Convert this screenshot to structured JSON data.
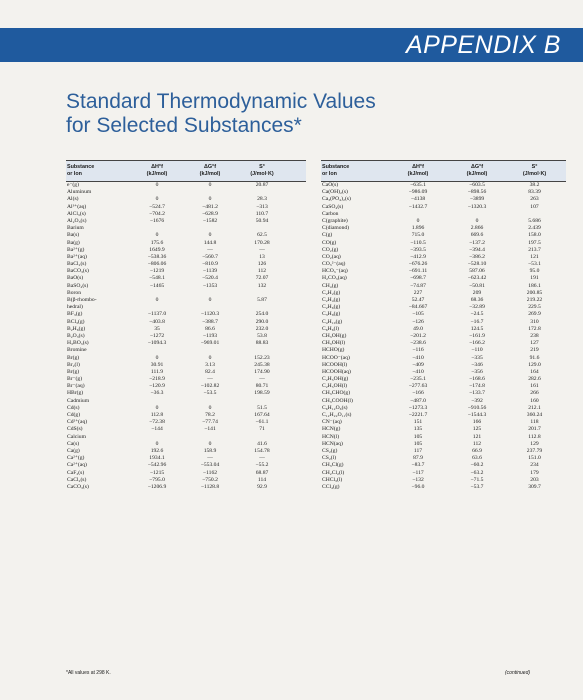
{
  "banner": {
    "label": "APPENDIX B"
  },
  "page_title": {
    "line1": "Standard Thermodynamic Values",
    "line2": "for Selected Substances*"
  },
  "headers": {
    "substance": "Substance",
    "substance2": "or Ion",
    "dh": "ΔH°f",
    "dh_unit": "(kJ/mol)",
    "dg": "ΔG°f",
    "dg_unit": "(kJ/mol)",
    "s": "S°",
    "s_unit": "(J/mol·K)"
  },
  "left_rows": [
    [
      "e⁻(g)",
      "0",
      "0",
      "20.87"
    ],
    [
      "Aluminum",
      "",
      "",
      ""
    ],
    [
      "Al(s)",
      "0",
      "0",
      "28.3"
    ],
    [
      "Al³⁺(aq)",
      "−524.7",
      "−481.2",
      "−313"
    ],
    [
      "AlCl₃(s)",
      "−704.2",
      "−628.9",
      "110.7"
    ],
    [
      "Al₂O₃(s)",
      "−1676",
      "−1582",
      "50.94"
    ],
    [
      "Barium",
      "",
      "",
      ""
    ],
    [
      "Ba(s)",
      "0",
      "0",
      "62.5"
    ],
    [
      "Ba(g)",
      "175.6",
      "144.8",
      "170.28"
    ],
    [
      "Ba²⁺(g)",
      "1649.9",
      "—",
      "—"
    ],
    [
      "Ba²⁺(aq)",
      "−538.36",
      "−560.7",
      "13"
    ],
    [
      "BaCl₂(s)",
      "−806.06",
      "−810.9",
      "126"
    ],
    [
      "BaCO₃(s)",
      "−1219",
      "−1139",
      "112"
    ],
    [
      "BaO(s)",
      "−548.1",
      "−520.4",
      "72.07"
    ],
    [
      "BaSO₄(s)",
      "−1465",
      "−1353",
      "132"
    ],
    [
      "Boron",
      "",
      "",
      ""
    ],
    [
      "B(β-rhombo-",
      "0",
      "0",
      "5.87"
    ],
    [
      "hedral)",
      "",
      "",
      ""
    ],
    [
      "BF₃(g)",
      "−1137.0",
      "−1120.3",
      "254.0"
    ],
    [
      "BCl₃(g)",
      "−403.8",
      "−388.7",
      "290.0"
    ],
    [
      "B₂H₆(g)",
      "35",
      "86.6",
      "232.0"
    ],
    [
      "B₂O₃(s)",
      "−1272",
      "−1193",
      "53.8"
    ],
    [
      "H₃BO₃(s)",
      "−1094.3",
      "−969.01",
      "88.83"
    ],
    [
      "Bromine",
      "",
      "",
      ""
    ],
    [
      "Br(g)",
      "0",
      "0",
      "152.23"
    ],
    [
      "Br₂(l)",
      "30.91",
      "3.13",
      "245.38"
    ],
    [
      "Br(g)",
      "111.9",
      "82.4",
      "174.90"
    ],
    [
      "Br⁻(g)",
      "−218.9",
      "—",
      "—"
    ],
    [
      "Br⁻(aq)",
      "−120.9",
      "−102.82",
      "80.71"
    ],
    [
      "HBr(g)",
      "−36.3",
      "−53.5",
      "198.59"
    ],
    [
      "Cadmium",
      "",
      "",
      ""
    ],
    [
      "Cd(s)",
      "0",
      "0",
      "51.5"
    ],
    [
      "Cd(g)",
      "112.8",
      "78.2",
      "167.64"
    ],
    [
      "Cd²⁺(aq)",
      "−72.38",
      "−77.74",
      "−61.1"
    ],
    [
      "CdS(s)",
      "−144",
      "−141",
      "71"
    ],
    [
      "Calcium",
      "",
      "",
      ""
    ],
    [
      "Ca(s)",
      "0",
      "0",
      "41.6"
    ],
    [
      "Ca(g)",
      "192.6",
      "158.9",
      "154.78"
    ],
    [
      "Ca²⁺(g)",
      "1934.1",
      "—",
      "—"
    ],
    [
      "Ca²⁺(aq)",
      "−542.96",
      "−553.04",
      "−55.2"
    ],
    [
      "CaF₂(s)",
      "−1215",
      "−1162",
      "68.87"
    ],
    [
      "CaCl₂(s)",
      "−795.0",
      "−750.2",
      "114"
    ],
    [
      "CaCO₃(s)",
      "−1206.9",
      "−1128.8",
      "92.9"
    ]
  ],
  "right_rows": [
    [
      "CaO(s)",
      "−635.1",
      "−603.5",
      "38.2"
    ],
    [
      "Ca(OH)₂(s)",
      "−986.09",
      "−898.56",
      "83.39"
    ],
    [
      "Ca₃(PO₄)₂(s)",
      "−4138",
      "−3899",
      "263"
    ],
    [
      "CaSO₄(s)",
      "−1432.7",
      "−1320.3",
      "107"
    ],
    [
      "Carbon",
      "",
      "",
      ""
    ],
    [
      "C(graphite)",
      "0",
      "0",
      "5.686"
    ],
    [
      "C(diamond)",
      "1.896",
      "2.866",
      "2.439"
    ],
    [
      "C(g)",
      "715.0",
      "669.6",
      "158.0"
    ],
    [
      "CO(g)",
      "−110.5",
      "−137.2",
      "197.5"
    ],
    [
      "CO₂(g)",
      "−393.5",
      "−394.4",
      "213.7"
    ],
    [
      "CO₂(aq)",
      "−412.9",
      "−386.2",
      "121"
    ],
    [
      "CO₃²⁻(aq)",
      "−676.26",
      "−528.10",
      "−53.1"
    ],
    [
      "HCO₃⁻(aq)",
      "−691.11",
      "587.06",
      "95.0"
    ],
    [
      "H₂CO₃(aq)",
      "−698.7",
      "−623.42",
      "191"
    ],
    [
      "CH₄(g)",
      "−74.87",
      "−50.81",
      "186.1"
    ],
    [
      "C₂H₂(g)",
      "227",
      "209",
      "200.85"
    ],
    [
      "C₂H₄(g)",
      "52.47",
      "68.36",
      "219.22"
    ],
    [
      "C₂H₆(g)",
      "−84.667",
      "−32.89",
      "229.5"
    ],
    [
      "C₃H₈(g)",
      "−105",
      "−24.5",
      "269.9"
    ],
    [
      "C₄H₁₀(g)",
      "−126",
      "−16.7",
      "310"
    ],
    [
      "C₆H₆(l)",
      "49.0",
      "124.5",
      "172.8"
    ],
    [
      "CH₃OH(g)",
      "−201.2",
      "−161.9",
      "238"
    ],
    [
      "CH₃OH(l)",
      "−238.6",
      "−166.2",
      "127"
    ],
    [
      "HCHO(g)",
      "−116",
      "−110",
      "219"
    ],
    [
      "HCOO⁻(aq)",
      "−410",
      "−335",
      "91.6"
    ],
    [
      "HCOOH(l)",
      "−409",
      "−346",
      "129.0"
    ],
    [
      "HCOOH(aq)",
      "−410",
      "−356",
      "164"
    ],
    [
      "C₂H₅OH(g)",
      "−235.1",
      "−168.6",
      "282.6"
    ],
    [
      "C₂H₅OH(l)",
      "−277.63",
      "−174.8",
      "161"
    ],
    [
      "CH₃CHO(g)",
      "−166",
      "−133.7",
      "266"
    ],
    [
      "CH₃COOH(l)",
      "−487.0",
      "−392",
      "160"
    ],
    [
      "C₆H₁₂O₆(s)",
      "−1273.3",
      "−910.56",
      "212.1"
    ],
    [
      "C₁₂H₂₂O₁₁(s)",
      "−2221.7",
      "−1544.3",
      "360.24"
    ],
    [
      "CN⁻(aq)",
      "151",
      "166",
      "118"
    ],
    [
      "HCN(g)",
      "135",
      "125",
      "201.7"
    ],
    [
      "HCN(l)",
      "105",
      "121",
      "112.8"
    ],
    [
      "HCN(aq)",
      "105",
      "112",
      "129"
    ],
    [
      "CS₂(g)",
      "117",
      "66.9",
      "237.79"
    ],
    [
      "CS₂(l)",
      "87.9",
      "63.6",
      "151.0"
    ],
    [
      "CH₃Cl(g)",
      "−83.7",
      "−60.2",
      "234"
    ],
    [
      "CH₂Cl₂(l)",
      "−117",
      "−63.2",
      "179"
    ],
    [
      "CHCl₃(l)",
      "−132",
      "−71.5",
      "203"
    ],
    [
      "CCl₄(g)",
      "−96.0",
      "−53.7",
      "309.7"
    ]
  ],
  "footnote": "*All values at 298 K.",
  "continued": "(continued)"
}
